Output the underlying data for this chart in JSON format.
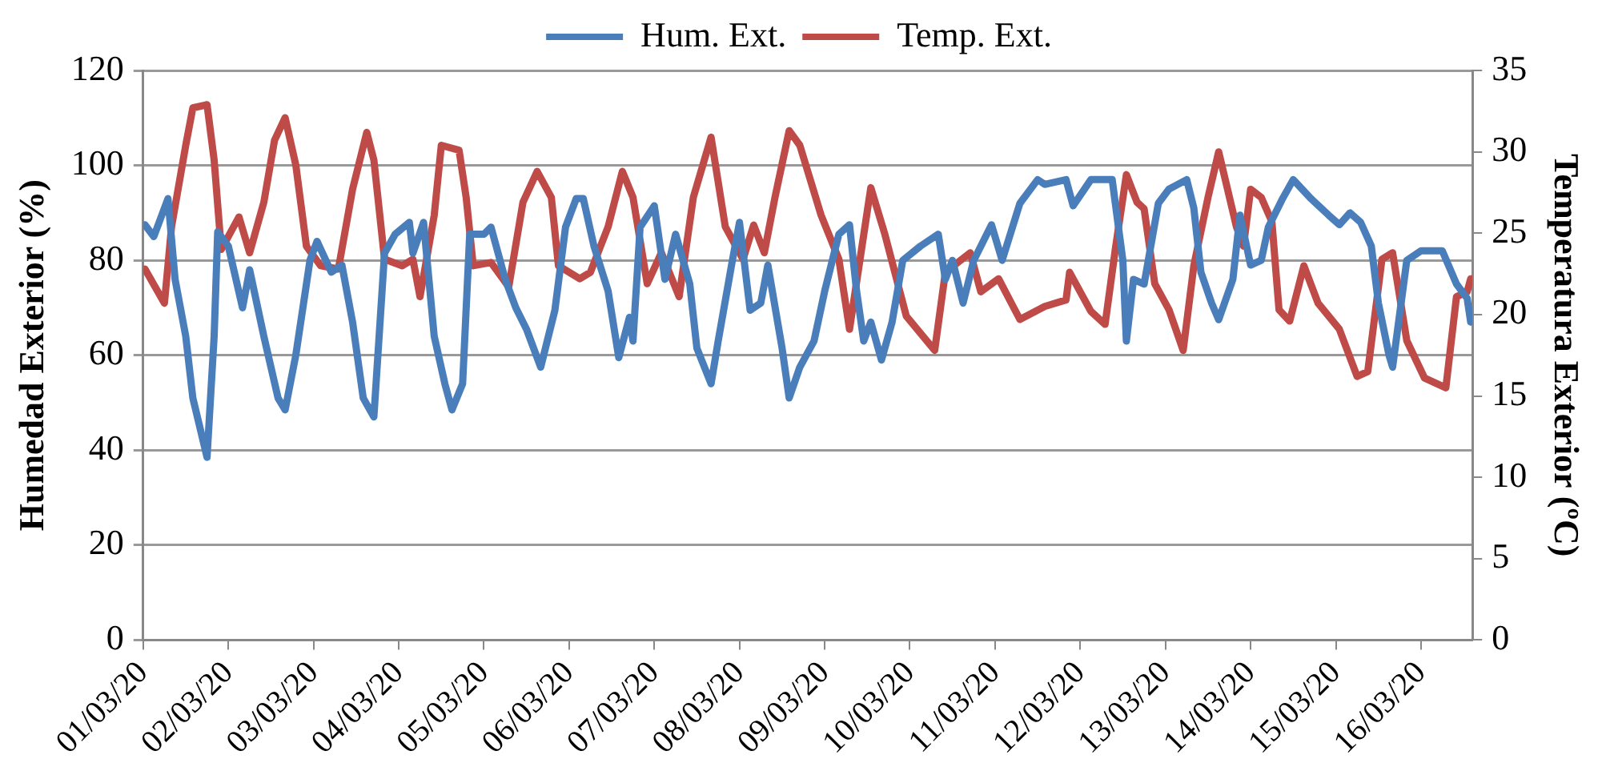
{
  "chart_data": {
    "type": "line",
    "ylabel": "Humedad Exterior (%)",
    "y2label": "Temperatura Exterior (ºC)",
    "xlim": [
      "--03-01T00:00",
      "--03-16T14:30"
    ],
    "xticks": [
      {
        "value": "--03-01",
        "label": "01/03/20"
      },
      {
        "value": "--03-02",
        "label": "02/03/20"
      },
      {
        "value": "--03-03",
        "label": "03/03/20"
      },
      {
        "value": "--03-04",
        "label": "04/03/20"
      },
      {
        "value": "--03-05",
        "label": "05/03/20"
      },
      {
        "value": "--03-06",
        "label": "06/03/20"
      },
      {
        "value": "--03-07",
        "label": "07/03/20"
      },
      {
        "value": "--03-08",
        "label": "08/03/20"
      },
      {
        "value": "--03-09",
        "label": "09/03/20"
      },
      {
        "value": "--03-10",
        "label": "10/03/20"
      },
      {
        "value": "--03-11",
        "label": "11/03/20"
      },
      {
        "value": "--03-12",
        "label": "12/03/20"
      },
      {
        "value": "--03-13",
        "label": "13/03/20"
      },
      {
        "value": "--03-14",
        "label": "14/03/20"
      },
      {
        "value": "--03-15",
        "label": "15/03/20"
      },
      {
        "value": "--03-16",
        "label": "16/03/20"
      }
    ],
    "ylim": [
      0,
      120
    ],
    "yticks": [
      0,
      20,
      40,
      60,
      80,
      100,
      120
    ],
    "y2lim": [
      0,
      35
    ],
    "y2ticks": [
      0,
      5,
      10,
      15,
      20,
      25,
      30,
      35
    ],
    "grid": "y",
    "legend": "top",
    "marker": "none",
    "line_style": "solid",
    "series": [
      {
        "name": "Hum. Ext.",
        "color": "#4a7ebb",
        "x": [
          "--03-01T00:30",
          "--03-01T03:00",
          "--03-01T07:00",
          "--03-01T09:00",
          "--03-01T12:00",
          "--03-01T14:00",
          "--03-01T18:00",
          "--03-01T20:00",
          "--03-01T21:00",
          "--03-02T00:00",
          "--03-02T04:00",
          "--03-02T06:00",
          "--03-02T10:00",
          "--03-02T14:00",
          "--03-02T16:00",
          "--03-02T19:00",
          "--03-02T23:00",
          "--03-03T01:00",
          "--03-03T05:00",
          "--03-03T08:00",
          "--03-03T11:00",
          "--03-03T14:00",
          "--03-03T17:00",
          "--03-03T20:00",
          "--03-03T23:00",
          "--03-04T03:00",
          "--03-04T04:00",
          "--03-04T07:00",
          "--03-04T10:00",
          "--03-04T13:00",
          "--03-04T15:00",
          "--03-04T18:00",
          "--03-04T20:00",
          "--03-05T00:00",
          "--03-05T02:00",
          "--03-05T06:00",
          "--03-05T09:00",
          "--03-05T12:00",
          "--03-05T16:00",
          "--03-05T20:00",
          "--03-05T23:00",
          "--03-06T02:00",
          "--03-06T04:00",
          "--03-06T07:00",
          "--03-06T11:00",
          "--03-06T14:00",
          "--03-06T17:00",
          "--03-06T18:00",
          "--03-06T20:00",
          "--03-07T00:00",
          "--03-07T03:00",
          "--03-07T06:00",
          "--03-07T10:00",
          "--03-07T12:00",
          "--03-07T16:00",
          "--03-07T18:00",
          "--03-07T22:00",
          "--03-08T00:00",
          "--03-08T03:00",
          "--03-08T06:00",
          "--03-08T08:00",
          "--03-08T12:00",
          "--03-08T14:00",
          "--03-08T17:00",
          "--03-08T21:00",
          "--03-09T00:00",
          "--03-09T04:00",
          "--03-09T07:00",
          "--03-09T09:00",
          "--03-09T11:00",
          "--03-09T13:00",
          "--03-09T16:00",
          "--03-09T19:00",
          "--03-09T22:00",
          "--03-10T03:00",
          "--03-10T08:00",
          "--03-10T10:00",
          "--03-10T12:00",
          "--03-10T15:00",
          "--03-10T18:00",
          "--03-10T23:00",
          "--03-11T02:00",
          "--03-11T07:00",
          "--03-11T12:00",
          "--03-11T14:00",
          "--03-11T20:00",
          "--03-11T22:00",
          "--03-12T03:00",
          "--03-12T09:00",
          "--03-12T12:00",
          "--03-12T13:00",
          "--03-12T15:00",
          "--03-12T18:00",
          "--03-12T22:00",
          "--03-13T01:00",
          "--03-13T06:00",
          "--03-13T08:00",
          "--03-13T10:00",
          "--03-13T13:00",
          "--03-13T15:00",
          "--03-13T19:00",
          "--03-13T21:00",
          "--03-14T00:00",
          "--03-14T03:00",
          "--03-14T05:00",
          "--03-14T09:00",
          "--03-14T12:00",
          "--03-14T17:00",
          "--03-14T22:00",
          "--03-15T01:00",
          "--03-15T04:00",
          "--03-15T07:00",
          "--03-15T10:00",
          "--03-15T12:00",
          "--03-15T15:00",
          "--03-15T16:00",
          "--03-15T20:00",
          "--03-16T00:00",
          "--03-16T06:00",
          "--03-16T10:00",
          "--03-16T13:00",
          "--03-16T14:00"
        ],
        "values": [
          87.5,
          85,
          93,
          76,
          64,
          51,
          38.5,
          64,
          86,
          83,
          70,
          78,
          64,
          51,
          48.5,
          60,
          80,
          84,
          77.5,
          79,
          67,
          51,
          47,
          81.5,
          85.5,
          88,
          81.5,
          88,
          64,
          54,
          48.5,
          54,
          85.5,
          85.5,
          87,
          76,
          70,
          65.5,
          57.5,
          69.5,
          87,
          93,
          93,
          83,
          73.5,
          59.5,
          68,
          63,
          87,
          91.5,
          76,
          85.5,
          75,
          61.5,
          54,
          63,
          80,
          88,
          69.5,
          71,
          79,
          61.5,
          51,
          57.5,
          63,
          73.5,
          85.5,
          87.5,
          73.5,
          63,
          67,
          59,
          67,
          80,
          83,
          85.5,
          76,
          80,
          71,
          80,
          87.5,
          80,
          92,
          97,
          96,
          97,
          91.5,
          97,
          97,
          80,
          63,
          76,
          75,
          92,
          95,
          97,
          91,
          77.5,
          71,
          67.5,
          76,
          89.5,
          79,
          80,
          87,
          93,
          97,
          93,
          89.5,
          87.5,
          90,
          88,
          83,
          71,
          60,
          57.5,
          80,
          82,
          82,
          75,
          72,
          67
        ]
      },
      {
        "name": "Temp. Ext.",
        "color": "#be4b48",
        "axis": "y2",
        "x": [
          "--03-01T00:30",
          "--03-01T06:00",
          "--03-01T08:00",
          "--03-01T12:00",
          "--03-01T14:00",
          "--03-01T18:00",
          "--03-01T20:00",
          "--03-01T22:00",
          "--03-02T03:00",
          "--03-02T06:00",
          "--03-02T10:00",
          "--03-02T13:00",
          "--03-02T16:00",
          "--03-02T19:00",
          "--03-02T22:00",
          "--03-03T02:00",
          "--03-03T07:00",
          "--03-03T11:00",
          "--03-03T15:00",
          "--03-03T17:00",
          "--03-03T20:00",
          "--03-04T01:00",
          "--03-04T04:00",
          "--03-04T06:00",
          "--03-04T10:00",
          "--03-04T12:00",
          "--03-04T17:00",
          "--03-04T19:00",
          "--03-04T21:00",
          "--03-05T02:00",
          "--03-05T07:00",
          "--03-05T11:00",
          "--03-05T15:00",
          "--03-05T19:00",
          "--03-05T21:00",
          "--03-06T03:00",
          "--03-06T06:00",
          "--03-06T11:00",
          "--03-06T15:00",
          "--03-06T18:00",
          "--03-06T22:00",
          "--03-07T02:00",
          "--03-07T07:00",
          "--03-07T11:00",
          "--03-07T16:00",
          "--03-07T20:00",
          "--03-08T01:00",
          "--03-08T04:00",
          "--03-08T07:00",
          "--03-08T10:00",
          "--03-08T14:00",
          "--03-08T17:00",
          "--03-08T23:00",
          "--03-09T04:00",
          "--03-09T07:00",
          "--03-09T13:00",
          "--03-09T17:00",
          "--03-09T23:00",
          "--03-10T07:00",
          "--03-10T10:00",
          "--03-10T17:00",
          "--03-10T20:00",
          "--03-11T01:00",
          "--03-11T07:00",
          "--03-11T14:00",
          "--03-11T20:00",
          "--03-11T21:00",
          "--03-12T03:00",
          "--03-12T07:00",
          "--03-12T10:00",
          "--03-12T13:00",
          "--03-12T16:00",
          "--03-12T18:00",
          "--03-12T21:00",
          "--03-13T01:00",
          "--03-13T05:00",
          "--03-13T08:00",
          "--03-13T12:00",
          "--03-13T15:00",
          "--03-13T20:00",
          "--03-13T22:00",
          "--03-14T00:00",
          "--03-14T03:00",
          "--03-14T06:00",
          "--03-14T08:00",
          "--03-14T11:00",
          "--03-14T15:00",
          "--03-14T19:00",
          "--03-15T01:00",
          "--03-15T06:00",
          "--03-15T09:00",
          "--03-15T13:00",
          "--03-15T16:00",
          "--03-15T20:00",
          "--03-16T01:00",
          "--03-16T07:00",
          "--03-16T10:00",
          "--03-16T13:00",
          "--03-16T14:00"
        ],
        "values": [
          22.8,
          20.7,
          25.4,
          30.4,
          32.7,
          32.9,
          29.5,
          24,
          26,
          23.8,
          26.9,
          30.7,
          32.1,
          29.2,
          24.2,
          23,
          22.8,
          27.7,
          31.2,
          29.5,
          23.4,
          23,
          23.4,
          21.1,
          26.1,
          30.4,
          30.1,
          27.2,
          23,
          23.2,
          21.7,
          26.9,
          28.8,
          27.2,
          23,
          22.2,
          22.6,
          25.4,
          28.8,
          27.2,
          21.9,
          23.8,
          21.1,
          27.2,
          30.9,
          25.4,
          23.4,
          25.5,
          23.8,
          27.2,
          31.3,
          30.4,
          26.1,
          23.4,
          19.1,
          27.8,
          24.9,
          19.9,
          17.8,
          22.6,
          23.8,
          21.4,
          22.2,
          19.7,
          20.5,
          20.9,
          22.6,
          20.2,
          19.4,
          24.2,
          28.6,
          26.9,
          26.5,
          21.9,
          20.3,
          17.8,
          23,
          27.2,
          30,
          25.4,
          24.2,
          27.7,
          27.2,
          25.7,
          20.3,
          19.6,
          23,
          20.7,
          19.1,
          16.2,
          16.5,
          23.4,
          23.8,
          18.4,
          16.1,
          15.5,
          21.1,
          21.4,
          22.2
        ]
      }
    ]
  }
}
